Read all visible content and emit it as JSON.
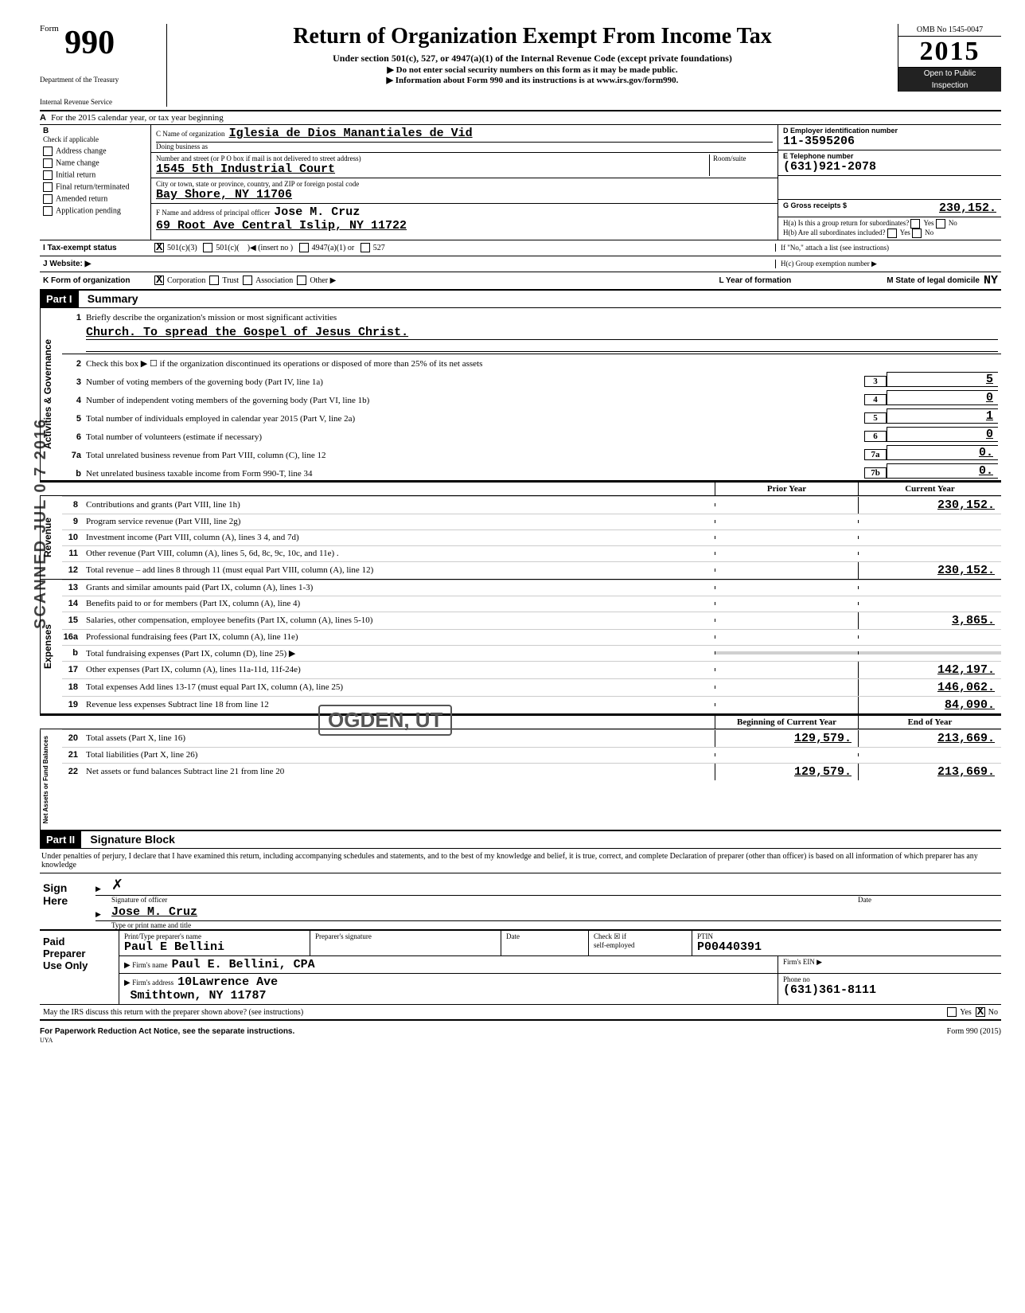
{
  "header": {
    "form_word": "Form",
    "form_number": "990",
    "dept1": "Department of the Treasury",
    "dept2": "Internal Revenue Service",
    "title": "Return of Organization Exempt From Income Tax",
    "sub1": "Under section 501(c), 527, or 4947(a)(1) of the Internal Revenue Code (except private foundations)",
    "sub2": "Do not enter social security numbers on this form as it may be made public.",
    "sub3": "Information about Form 990 and its instructions is at www.irs.gov/form990.",
    "omb": "OMB No 1545-0047",
    "year": "2015",
    "open1": "Open to Public",
    "open2": "Inspection"
  },
  "rowA": "For the 2015 calendar year, or tax year beginning",
  "B": {
    "label": "Check if applicable",
    "items": [
      "Address change",
      "Name change",
      "Initial return",
      "Final return/terminated",
      "Amended return",
      "Application pending"
    ]
  },
  "C": {
    "name_label": "C  Name of organization",
    "name": "Iglesia de Dios Manantiales de Vid",
    "dba_label": "Doing business as",
    "addr_label": "Number and street (or P O box if mail is not delivered to street address)",
    "room_label": "Room/suite",
    "addr": "1545 5th Industrial Court",
    "city_label": "City or town, state or province, country, and ZIP or foreign postal code",
    "city": "Bay Shore, NY 11706",
    "f_label": "F Name and address of principal officer",
    "f_name": "Jose M. Cruz",
    "f_addr": "69 Root Ave Central Islip, NY 11722"
  },
  "D": {
    "ein_label": "D Employer identification number",
    "ein": "11-3595206",
    "phone_label": "E Telephone number",
    "phone": "(631)921-2078",
    "gross_label": "G Gross receipts $",
    "gross": "230,152.",
    "ha_label": "H(a) Is this a group return for subordinates?",
    "hb_label": "H(b) Are all subordinates included?",
    "hno": "If \"No,\" attach a list (see instructions)",
    "hc_label": "H(c) Group exemption number ▶"
  },
  "I": {
    "label": "I   Tax-exempt status",
    "opt1": "501(c)(3)",
    "opt2": "501(c)(",
    "opt2b": ")◀ (insert no )",
    "opt3": "4947(a)(1) or",
    "opt4": "527"
  },
  "J": "J  Website: ▶",
  "K": {
    "label": "K  Form of organization",
    "opts": [
      "Corporation",
      "Trust",
      "Association",
      "Other ▶"
    ],
    "L": "L   Year of formation",
    "M": "M  State of legal domicile",
    "M_val": "NY"
  },
  "part1": {
    "title": "Part I",
    "sub": "Summary",
    "side1": "Activities & Governance",
    "q1a": "Briefly describe the organization's mission or most significant activities",
    "q1b": "Church. To spread the Gospel of Jesus Christ.",
    "q2": "Check this box ▶ ☐  if the organization discontinued its operations or disposed of more than 25% of its net assets",
    "lines_gov": [
      {
        "n": "3",
        "d": "Number of voting members of the governing body (Part IV, line 1a)",
        "b": "3",
        "v": "5"
      },
      {
        "n": "4",
        "d": "Number of independent voting members of the governing body (Part VI, line 1b)",
        "b": "4",
        "v": "0"
      },
      {
        "n": "5",
        "d": "Total number of individuals employed in calendar year 2015 (Part V, line 2a)",
        "b": "5",
        "v": "1"
      },
      {
        "n": "6",
        "d": "Total number of volunteers (estimate if necessary)",
        "b": "6",
        "v": "0"
      },
      {
        "n": "7a",
        "d": "Total unrelated business revenue from Part VIII, column (C), line 12",
        "b": "7a",
        "v": "0."
      },
      {
        "n": "b",
        "d": "Net unrelated business taxable income from Form 990-T, line 34",
        "b": "7b",
        "v": "0."
      }
    ],
    "col_prior": "Prior Year",
    "col_current": "Current Year",
    "side2": "Revenue",
    "lines_rev": [
      {
        "n": "8",
        "d": "Contributions and grants (Part VIII, line 1h)",
        "p": "",
        "c": "230,152."
      },
      {
        "n": "9",
        "d": "Program service revenue (Part VIII, line 2g)",
        "p": "",
        "c": ""
      },
      {
        "n": "10",
        "d": "Investment income (Part VIII, column (A), lines 3  4, and 7d)",
        "p": "",
        "c": ""
      },
      {
        "n": "11",
        "d": "Other revenue (Part VIII, column (A), lines 5, 6d, 8c, 9c, 10c, and 11e) .",
        "p": "",
        "c": ""
      },
      {
        "n": "12",
        "d": "Total revenue – add lines 8 through 11 (must equal Part VIII, column (A), line 12)",
        "p": "",
        "c": "230,152."
      }
    ],
    "side3": "Expenses",
    "lines_exp": [
      {
        "n": "13",
        "d": "Grants and similar amounts paid (Part IX, column (A), lines 1-3)",
        "p": "",
        "c": ""
      },
      {
        "n": "14",
        "d": "Benefits paid to or for members (Part IX, column (A), line 4)",
        "p": "",
        "c": ""
      },
      {
        "n": "15",
        "d": "Salaries, other compensation, employee benefits (Part IX, column (A), lines 5-10)",
        "p": "",
        "c": "3,865."
      },
      {
        "n": "16a",
        "d": "Professional fundraising fees (Part IX, column (A), line 11e)",
        "p": "",
        "c": ""
      },
      {
        "n": "b",
        "d": "Total fundraising expenses (Part IX, column (D), line 25) ▶",
        "p": "shaded",
        "c": "shaded"
      },
      {
        "n": "17",
        "d": "Other expenses (Part IX, column (A), lines 11a-11d, 11f-24e)",
        "p": "",
        "c": "142,197."
      },
      {
        "n": "18",
        "d": "Total expenses  Add lines 13-17 (must equal Part IX, column (A), line 25)",
        "p": "",
        "c": "146,062."
      },
      {
        "n": "19",
        "d": "Revenue less expenses  Subtract line 18 from line 12",
        "p": "",
        "c": "84,090."
      }
    ],
    "col_begin": "Beginning of Current Year",
    "col_end": "End of Year",
    "side4": "Net Assets or Fund Balances",
    "lines_net": [
      {
        "n": "20",
        "d": "Total assets (Part X, line 16)",
        "p": "129,579.",
        "c": "213,669."
      },
      {
        "n": "21",
        "d": "Total liabilities (Part X, line 26)",
        "p": "",
        "c": ""
      },
      {
        "n": "22",
        "d": "Net assets or fund balances  Subtract line 21 from line 20",
        "p": "129,579.",
        "c": "213,669."
      }
    ]
  },
  "part2": {
    "title": "Part II",
    "sub": "Signature Block",
    "decl": "Under penalties of perjury, I declare that I have examined this return, including accompanying schedules and statements, and to the best of my knowledge and belief, it is true, correct, and complete  Declaration of preparer (other than officer) is based on all information of which preparer has any knowledge",
    "sign": "Sign",
    "here": "Here",
    "sig_label": "Signature of officer",
    "date_label": "Date",
    "officer": "Jose M. Cruz",
    "type_label": "Type or print name and title",
    "paid": "Paid",
    "preparer": "Preparer",
    "useonly": "Use Only",
    "prep_name_label": "Print/Type preparer's name",
    "prep_name": "Paul E Bellini",
    "prep_sig_label": "Preparer's signature",
    "check_if": "Check ☒ if",
    "self_emp": "self-employed",
    "ptin_label": "PTIN",
    "ptin": "P00440391",
    "firm_name_label": "Firm's name",
    "firm_name": "Paul E. Bellini, CPA",
    "firm_ein_label": "Firm's EIN ▶",
    "firm_addr_label": "Firm's address",
    "firm_addr1": "10Lawrence Ave",
    "firm_addr2": "Smithtown, NY 11787",
    "phone_label": "Phone no",
    "phone": "(631)361-8111",
    "discuss": "May the IRS discuss this return with the preparer shown above? (see instructions)",
    "yes": "Yes",
    "no": "No"
  },
  "footer": {
    "left": "For Paperwork Reduction Act Notice, see the separate instructions.",
    "right": "Form 990 (2015)",
    "uya": "UYA"
  },
  "stamps": {
    "scanned": "SCANNED JUL 0 7 2016",
    "ogden": "OGDEN, UT"
  }
}
